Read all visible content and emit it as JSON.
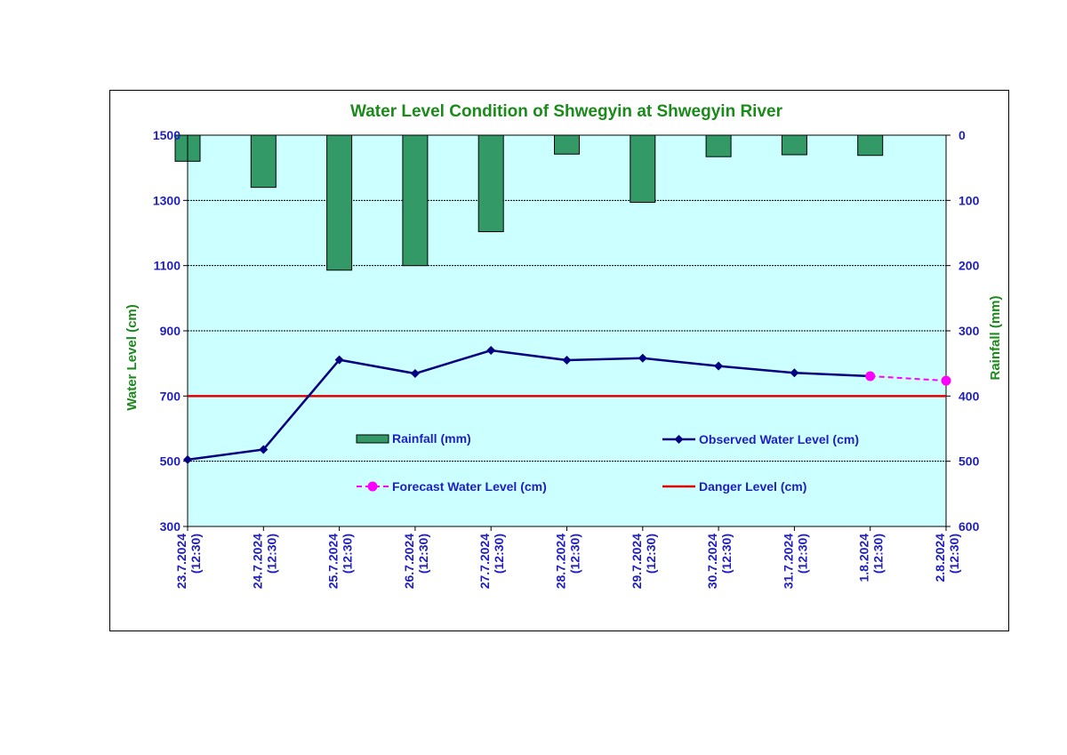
{
  "chart_data": {
    "type": "bar+line",
    "title": "Water Level Condition of Shwegyin at Shwegyin River",
    "x_categories": [
      [
        "23.7.2024",
        "(12:30)"
      ],
      [
        "24.7.2024",
        "(12:30)"
      ],
      [
        "25.7.2024",
        "(12:30)"
      ],
      [
        "26.7.2024",
        "(12:30)"
      ],
      [
        "27.7.2024",
        "(12:30)"
      ],
      [
        "28.7.2024",
        "(12:30)"
      ],
      [
        "29.7.2024",
        "(12:30)"
      ],
      [
        "30.7.2024",
        "(12:30)"
      ],
      [
        "31.7.2024",
        "(12:30)"
      ],
      [
        "1.8.2024",
        "(12:30)"
      ],
      [
        "2.8.2024",
        "(12:30)"
      ]
    ],
    "y_left": {
      "label": "Water Level (cm)",
      "min": 300,
      "max": 1500,
      "ticks": [
        300,
        500,
        700,
        900,
        1100,
        1300,
        1500
      ]
    },
    "y_right": {
      "label": "Rainfall (mm)",
      "min": 0,
      "max": 600,
      "inverted": true,
      "ticks": [
        0,
        100,
        200,
        300,
        400,
        500,
        600
      ]
    },
    "grid": true,
    "plot_background": "#ccffff",
    "series": [
      {
        "name": "Rainfall (mm)",
        "kind": "bar",
        "axis": "right",
        "color": "#339966",
        "values": [
          40,
          80,
          207,
          200,
          148,
          29,
          103,
          33,
          30,
          31,
          null
        ]
      },
      {
        "name": "Observed Water Level (cm)",
        "kind": "line",
        "axis": "left",
        "color": "#000080",
        "marker": "diamond",
        "values": [
          505,
          536,
          811,
          769,
          840,
          810,
          816,
          792,
          771,
          761,
          null
        ]
      },
      {
        "name": "Forecast Water Level (cm)",
        "kind": "line",
        "axis": "left",
        "color": "#ff00ff",
        "marker": "circle",
        "dashed": true,
        "values": [
          null,
          null,
          null,
          null,
          null,
          null,
          null,
          null,
          null,
          761,
          747
        ]
      },
      {
        "name": "Danger Level (cm)",
        "kind": "hline",
        "axis": "left",
        "color": "#e00000",
        "value": 700
      }
    ],
    "legend_position": "inside-center"
  }
}
